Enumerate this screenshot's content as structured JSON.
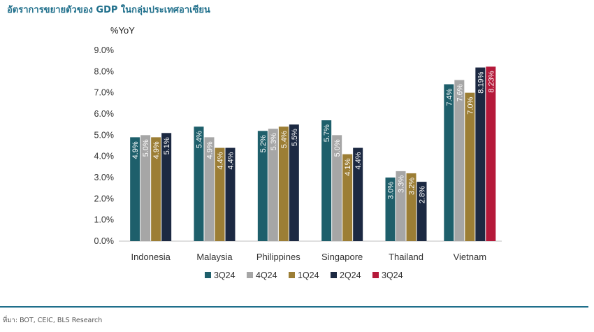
{
  "header": {
    "title": "อัตราการขยายตัวของ GDP ในกลุ่มประเทศอาเซียน"
  },
  "footer": {
    "source": "ที่มา: BOT, CEIC, BLS Research"
  },
  "colors": {
    "3Q24": "#1e5f6b",
    "4Q24": "#a6a6a6",
    "1Q24": "#9c7e35",
    "2Q24": "#1c2942",
    "3Q24_vn": "#b5193a"
  },
  "chart_data": {
    "type": "bar",
    "title": "อัตราการขยายตัวของ GDP ในกลุ่มประเทศอาเซียน",
    "ylabel": "%YoY",
    "xlabel": "",
    "ylim": [
      0,
      9
    ],
    "yticks": [
      "0.0%",
      "1.0%",
      "2.0%",
      "3.0%",
      "4.0%",
      "5.0%",
      "6.0%",
      "7.0%",
      "8.0%",
      "9.0%"
    ],
    "categories": [
      "Indonesia",
      "Malaysia",
      "Philippines",
      "Singapore",
      "Thailand",
      "Vietnam"
    ],
    "series": [
      {
        "name": "3Q24",
        "color": "#1e5f6b",
        "values": [
          4.9,
          5.4,
          5.2,
          5.7,
          3.0,
          7.4
        ],
        "labels": [
          "4.9%",
          "5.4%",
          "5.2%",
          "5.7%",
          "3.0%",
          "7.4%"
        ]
      },
      {
        "name": "4Q24",
        "color": "#a6a6a6",
        "values": [
          5.0,
          4.9,
          5.3,
          5.0,
          3.3,
          7.6
        ],
        "labels": [
          "5.0%",
          "4.9%",
          "5.3%",
          "5.0%",
          "3.3%",
          "7.6%"
        ]
      },
      {
        "name": "1Q24",
        "color": "#9c7e35",
        "values": [
          4.9,
          4.4,
          5.4,
          4.1,
          3.2,
          7.0
        ],
        "labels": [
          "4.9%",
          "4.4%",
          "5.4%",
          "4.1%",
          "3.2%",
          "7.0%"
        ]
      },
      {
        "name": "2Q24",
        "color": "#1c2942",
        "values": [
          5.1,
          4.4,
          5.5,
          4.4,
          2.8,
          8.19
        ],
        "labels": [
          "5.1%",
          "4.4%",
          "5.5%",
          "4.4%",
          "2.8%",
          "8.19%"
        ]
      },
      {
        "name": "3Q24",
        "color": "#b5193a",
        "values": [
          null,
          null,
          null,
          null,
          null,
          8.23
        ],
        "labels": [
          null,
          null,
          null,
          null,
          null,
          "8.23%"
        ]
      }
    ],
    "legend": {
      "position": "bottom",
      "entries": [
        "3Q24",
        "4Q24",
        "1Q24",
        "2Q24",
        "3Q24"
      ]
    },
    "grid": false
  }
}
